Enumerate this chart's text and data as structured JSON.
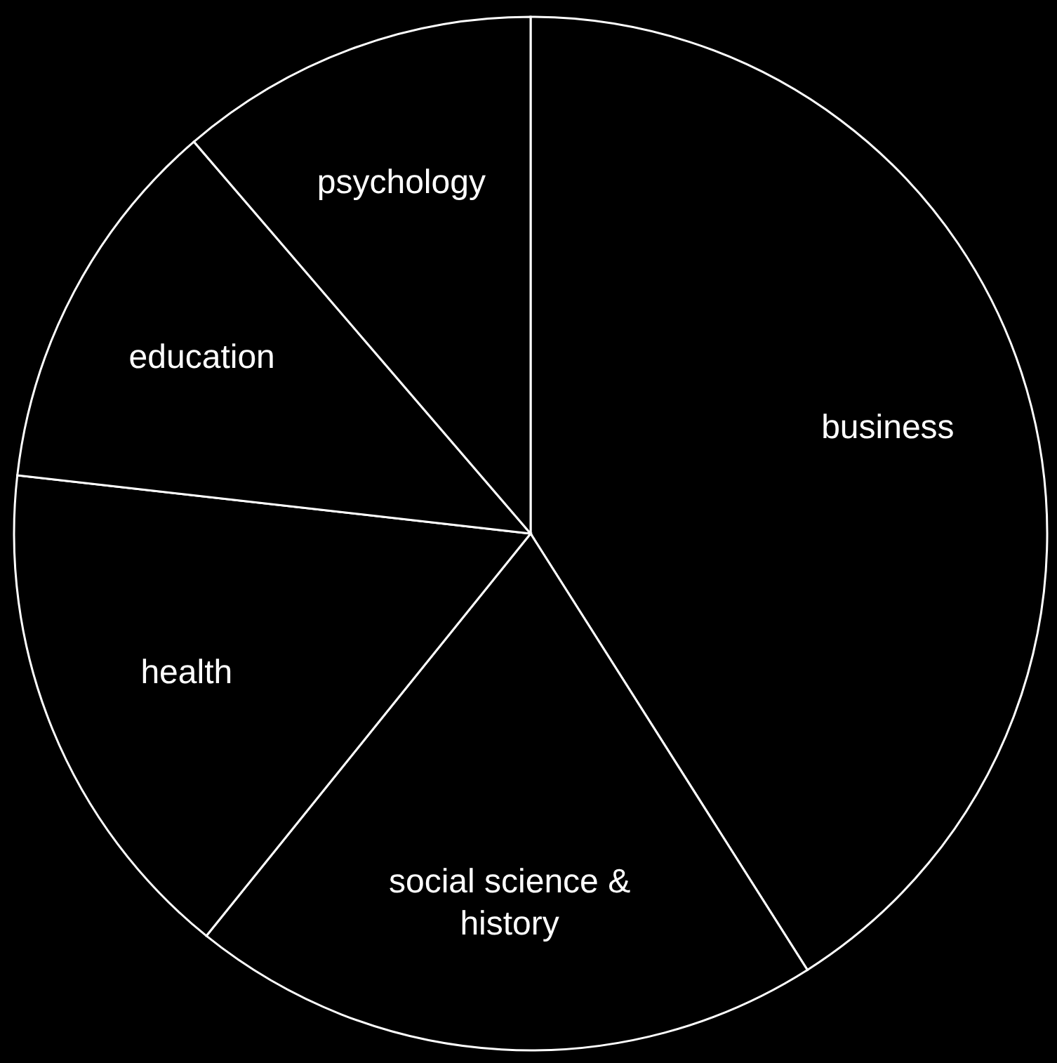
{
  "chart_data": {
    "type": "pie",
    "categories": [
      "business",
      "social science & history",
      "health",
      "education",
      "psychology"
    ],
    "values": [
      41.0,
      19.8,
      16.0,
      11.9,
      11.3
    ],
    "colors": [
      "#000000",
      "#000000",
      "#000000",
      "#000000",
      "#000000"
    ]
  }
}
